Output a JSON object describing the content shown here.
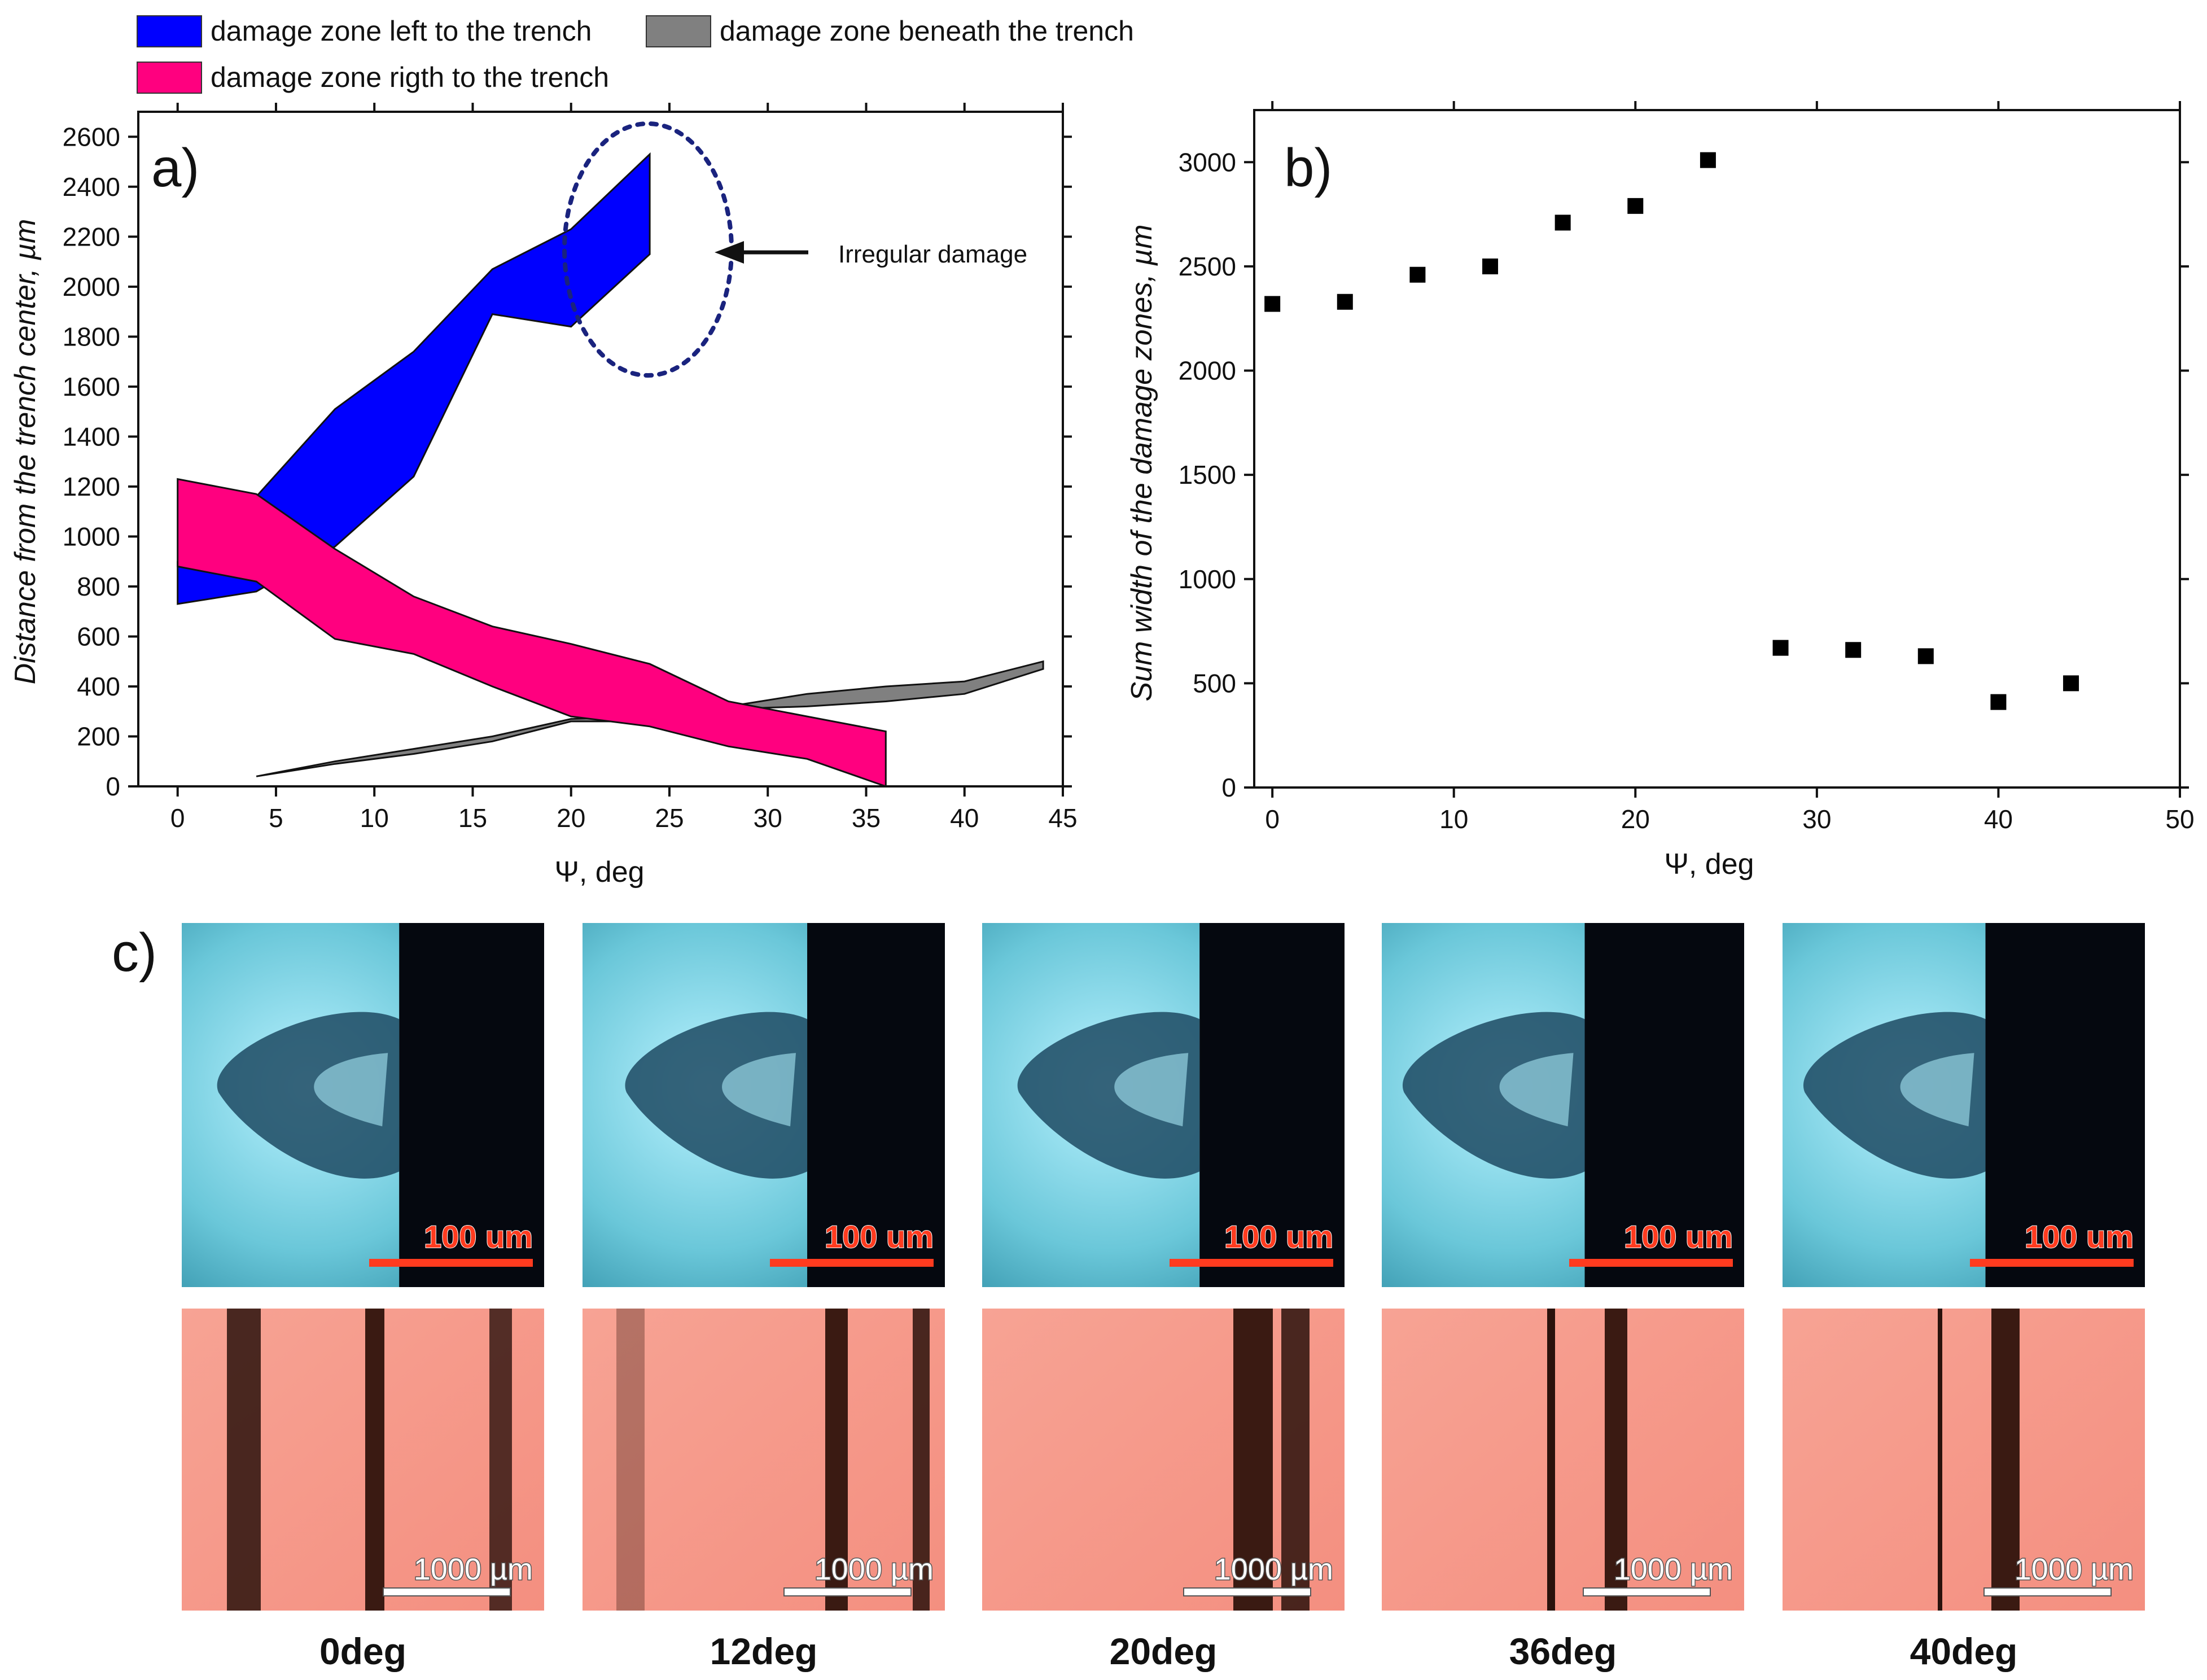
{
  "legend": {
    "left": {
      "label": "damage zone left to the trench",
      "color": "#0000ff"
    },
    "beneath": {
      "label": "damage zone beneath the trench",
      "color": "#808080"
    },
    "right": {
      "label": "damage zone rigth to the trench",
      "color": "#ff007f"
    }
  },
  "chart_data": [
    {
      "type": "area",
      "panel": "a)",
      "xlabel": "Ψ, deg",
      "ylabel": "Distance from the trench center, µm",
      "xlim": [
        -2,
        45
      ],
      "ylim": [
        0,
        2700
      ],
      "xticks": [
        0,
        5,
        10,
        15,
        20,
        25,
        30,
        35,
        40,
        45
      ],
      "yticks": [
        0,
        200,
        400,
        600,
        800,
        1000,
        1200,
        1400,
        1600,
        1800,
        2000,
        2200,
        2400,
        2600
      ],
      "series": [
        {
          "name": "damage zone left to the trench",
          "color": "#0000ff",
          "x": [
            0,
            4,
            8,
            12,
            16,
            20,
            24
          ],
          "upper": [
            900,
            1160,
            1510,
            1740,
            2070,
            2230,
            2530
          ],
          "lower": [
            730,
            780,
            960,
            1240,
            1890,
            1840,
            2130
          ]
        },
        {
          "name": "damage zone rigth to the trench",
          "color": "#ff007f",
          "x": [
            0,
            4,
            8,
            12,
            16,
            20,
            24,
            28,
            32,
            36
          ],
          "upper": [
            1230,
            1170,
            950,
            760,
            640,
            570,
            490,
            340,
            280,
            220
          ],
          "lower": [
            880,
            820,
            590,
            530,
            400,
            280,
            240,
            160,
            110,
            0
          ]
        },
        {
          "name": "damage zone beneath the trench",
          "color": "#808080",
          "x": [
            4,
            8,
            12,
            16,
            20,
            24,
            28,
            32,
            36,
            40,
            44
          ],
          "upper": [
            40,
            100,
            150,
            200,
            270,
            280,
            320,
            370,
            400,
            420,
            500
          ],
          "lower": [
            40,
            90,
            130,
            180,
            260,
            260,
            310,
            320,
            340,
            370,
            470
          ]
        }
      ],
      "annotation": {
        "text": "Irregular damage"
      }
    },
    {
      "type": "scatter",
      "panel": "b)",
      "xlabel": "Ψ, deg",
      "ylabel": "Sum width of the damage zones, µm",
      "xlim": [
        -1,
        50
      ],
      "ylim": [
        0,
        3250
      ],
      "xticks": [
        0,
        10,
        20,
        30,
        40,
        50
      ],
      "yticks": [
        0,
        500,
        1000,
        1500,
        2000,
        2500,
        3000
      ],
      "x": [
        0,
        4,
        8,
        12,
        16,
        20,
        24,
        28,
        32,
        36,
        40,
        44
      ],
      "y": [
        2320,
        2330,
        2460,
        2500,
        2710,
        2790,
        3010,
        670,
        660,
        630,
        410,
        500
      ]
    }
  ],
  "images": {
    "panel_label": "c)",
    "columns": [
      {
        "caption": "0deg",
        "top_scale": "100 um",
        "bottom_scale": "1000 µm"
      },
      {
        "caption": "12deg",
        "top_scale": "100 um",
        "bottom_scale": "1000 µm"
      },
      {
        "caption": "20deg",
        "top_scale": "100 um",
        "bottom_scale": "1000 µm"
      },
      {
        "caption": "36deg",
        "top_scale": "100 um",
        "bottom_scale": "1000 µm"
      },
      {
        "caption": "40deg",
        "top_scale": "100 um",
        "bottom_scale": "1000 µm"
      }
    ]
  }
}
